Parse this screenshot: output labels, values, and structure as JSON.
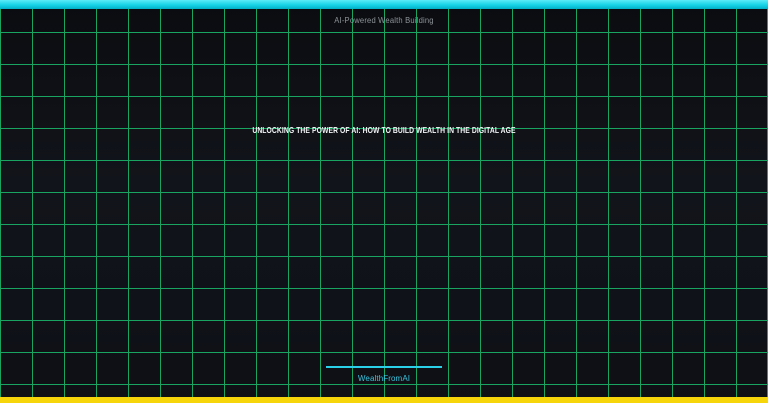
{
  "page": {
    "header_label": "AI-Powered Wealth Building",
    "heading": "UNLOCKING THE POWER OF AI: HOW TO BUILD WEALTH IN THE DIGITAL AGE",
    "brand": "WealthFromAI"
  },
  "colors": {
    "background": "#0e1016",
    "grid_line": "#19a561",
    "top_bar": "#17d3e6",
    "bottom_bar": "#f6d60a",
    "accent_cyan": "#2acfe8",
    "heading_text": "#f2f4f5",
    "header_label_text": "#8e9498",
    "brand_text": "#3ac4dd"
  }
}
